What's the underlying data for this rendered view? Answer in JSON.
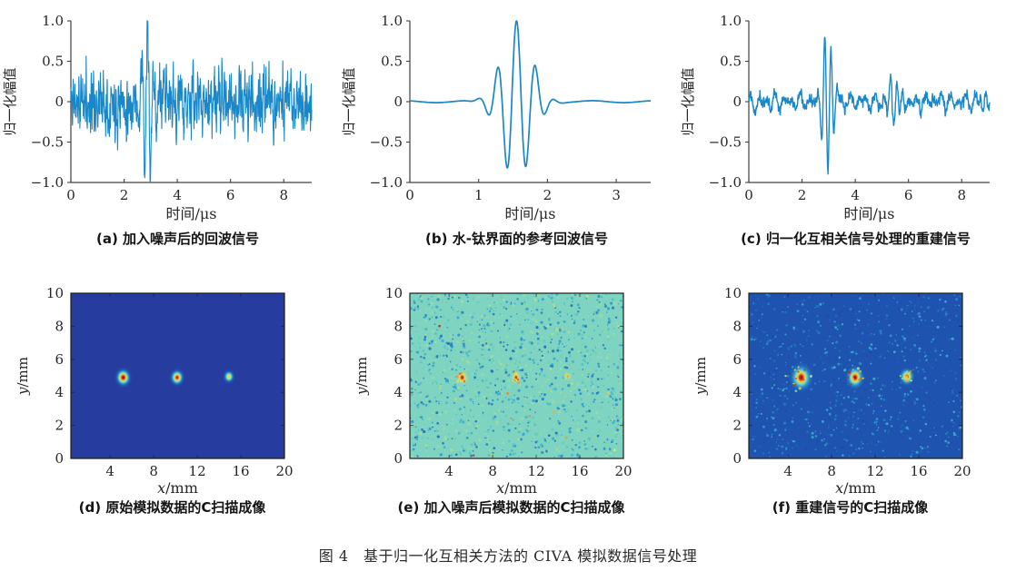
{
  "figure_caption": "图 4　基于归一化互相关方法的 CIVA 模拟数据信号处理",
  "colors": {
    "line": "#1987c8",
    "axis": "#404040",
    "tick_text": "#262626",
    "caption_text": "#141414",
    "heat_border": "#1b1b1b",
    "colormap": [
      [
        0.0,
        "#283a9e"
      ],
      [
        0.14,
        "#1d56b0"
      ],
      [
        0.3,
        "#2f9fd4"
      ],
      [
        0.42,
        "#62cbc4"
      ],
      [
        0.5,
        "#8fd9bd"
      ],
      [
        0.58,
        "#aede8d"
      ],
      [
        0.68,
        "#e8e84a"
      ],
      [
        0.78,
        "#f5a32a"
      ],
      [
        0.88,
        "#e04a1e"
      ],
      [
        0.95,
        "#c3241c"
      ],
      [
        1.0,
        "#7f100c"
      ]
    ]
  },
  "chart_data": [
    {
      "type": "line",
      "panel": "a",
      "caption": "(a) 加入噪声后的回波信号",
      "xlabel": "时间/μs",
      "ylabel": "归一化幅值",
      "xlim": [
        0,
        9.05
      ],
      "ylim": [
        -1,
        1
      ],
      "xticks": [
        0,
        2,
        4,
        6,
        8
      ],
      "xtick_labels": [
        "0",
        "2",
        "4",
        "6",
        "8"
      ],
      "yticks": [
        1,
        0.5,
        0,
        -0.5,
        -1
      ],
      "ytick_labels": [
        "1.0",
        "0.5",
        "0",
        "−0.5",
        "−1.0"
      ],
      "signal": {
        "points": 1150,
        "seed": 11,
        "noise_amp": 0.55,
        "line_width": 1.1,
        "ripples": [],
        "bursts": [
          {
            "center": 2.88,
            "sigma": 0.26,
            "freq": 4.6,
            "amp": 1.12,
            "phase": 1.5708
          }
        ]
      }
    },
    {
      "type": "line",
      "panel": "b",
      "caption": "(b) 水-钛界面的参考回波信号",
      "xlabel": "时间/μs",
      "ylabel": "归一化幅值",
      "xlim": [
        0,
        3.5
      ],
      "ylim": [
        -1,
        1
      ],
      "xticks": [
        0,
        1,
        2,
        3
      ],
      "xtick_labels": [
        "0",
        "1",
        "2",
        "3"
      ],
      "yticks": [
        1,
        0.5,
        0,
        -0.5,
        -1
      ],
      "ytick_labels": [
        "1.0",
        "0.5",
        "0",
        "−0.5",
        "−1.0"
      ],
      "signal": {
        "points": 460,
        "seed": 3,
        "noise_amp": 0,
        "line_width": 1.7,
        "ripples": [
          {
            "amp": 0.012,
            "freq": 1.1,
            "phase": 2.1
          }
        ],
        "bursts": [
          {
            "center": 1.55,
            "sigma": 0.3,
            "freq": 3.6,
            "amp": 1.0,
            "phase": 1.5708
          }
        ]
      }
    },
    {
      "type": "line",
      "panel": "c",
      "caption": "(c) 归一化互相关信号处理的重建信号",
      "xlabel": "时间/μs",
      "ylabel": "归一化幅值",
      "xlim": [
        0,
        9.05
      ],
      "ylim": [
        -1,
        1
      ],
      "xticks": [
        0,
        2,
        4,
        6,
        8
      ],
      "xtick_labels": [
        "0",
        "2",
        "4",
        "6",
        "8"
      ],
      "yticks": [
        1,
        0.5,
        0,
        -0.5,
        -1
      ],
      "ytick_labels": [
        "1.0",
        "0.5",
        "0",
        "−0.5",
        "−1.0"
      ],
      "signal": {
        "points": 1150,
        "seed": 27,
        "noise_amp": 0.1,
        "line_width": 1.4,
        "ripples": [
          {
            "amp": 0.055,
            "freq": 3.2,
            "phase": 0.4
          },
          {
            "amp": 0.05,
            "freq": 2.1,
            "phase": 1.3
          }
        ],
        "bursts": [
          {
            "center": 2.97,
            "sigma": 0.27,
            "freq": 4.2,
            "amp": 0.88,
            "phase": -1.5708
          },
          {
            "center": 5.5,
            "sigma": 0.3,
            "freq": 4.2,
            "amp": 0.32,
            "phase": 0
          },
          {
            "center": 8.85,
            "sigma": 0.17,
            "freq": 4.2,
            "amp": 0.18,
            "phase": 0
          }
        ]
      }
    },
    {
      "type": "heatmap",
      "panel": "d",
      "caption": "(d) 原始模拟数据的C扫描成像",
      "xlabel_var": "x",
      "xlabel_unit": "/mm",
      "ylabel_var": "y",
      "ylabel_unit": "/mm",
      "xlim": [
        0.4,
        20
      ],
      "ylim": [
        0,
        10
      ],
      "xticks": [
        4,
        8,
        12,
        16,
        20
      ],
      "xtick_labels": [
        "4",
        "8",
        "12",
        "16",
        "20"
      ],
      "yticks": [
        0,
        2,
        4,
        6,
        8,
        10
      ],
      "ytick_labels": [
        "0",
        "2",
        "4",
        "6",
        "8",
        "10"
      ],
      "floor": 0.01,
      "falloff": 0.54,
      "seed": 5,
      "speckles": {
        "count": 0,
        "bias": 0.5,
        "spread": 0,
        "size": 0
      },
      "spot_noise": 0,
      "spots": [
        {
          "x": 5.2,
          "y": 4.9,
          "rx": 0.8,
          "ry": 0.62,
          "peak": 1.0
        },
        {
          "x": 10.15,
          "y": 4.9,
          "rx": 0.72,
          "ry": 0.56,
          "peak": 0.96
        },
        {
          "x": 14.9,
          "y": 4.95,
          "rx": 0.58,
          "ry": 0.45,
          "peak": 0.74
        }
      ]
    },
    {
      "type": "heatmap",
      "panel": "e",
      "caption": "(e) 加入噪声后模拟数据的C扫描成像",
      "xlabel_var": "x",
      "xlabel_unit": "/mm",
      "ylabel_var": "y",
      "ylabel_unit": "/mm",
      "xlim": [
        0.4,
        20
      ],
      "ylim": [
        0,
        10
      ],
      "xticks": [
        4,
        8,
        12,
        16,
        20
      ],
      "xtick_labels": [
        "4",
        "8",
        "12",
        "16",
        "20"
      ],
      "yticks": [
        0,
        2,
        4,
        6,
        8,
        10
      ],
      "ytick_labels": [
        "0",
        "2",
        "4",
        "6",
        "8",
        "10"
      ],
      "floor": 0.47,
      "falloff": 0.42,
      "seed": 13,
      "speckles": {
        "count": 1500,
        "bias": 0.72,
        "spread": 0.4,
        "size": 1.5,
        "hot_prob": 0.02,
        "hot_amp": 0.28
      },
      "spot_noise": 10,
      "spots": [
        {
          "x": 5.2,
          "y": 4.9,
          "rx": 0.62,
          "ry": 0.5,
          "peak": 0.97
        },
        {
          "x": 10.15,
          "y": 4.9,
          "rx": 0.5,
          "ry": 0.42,
          "peak": 0.95
        },
        {
          "x": 14.9,
          "y": 4.95,
          "rx": 0.42,
          "ry": 0.33,
          "peak": 0.85
        }
      ]
    },
    {
      "type": "heatmap",
      "panel": "f",
      "caption": "(f) 重建信号的C扫描成像",
      "xlabel_var": "x",
      "xlabel_unit": "/mm",
      "ylabel_var": "y",
      "ylabel_unit": "/mm",
      "xlim": [
        0.4,
        20
      ],
      "ylim": [
        0,
        10
      ],
      "xticks": [
        4,
        8,
        12,
        16,
        20
      ],
      "xtick_labels": [
        "4",
        "8",
        "12",
        "16",
        "20"
      ],
      "yticks": [
        0,
        2,
        4,
        6,
        8,
        10
      ],
      "ytick_labels": [
        "0",
        "2",
        "4",
        "6",
        "8",
        "10"
      ],
      "floor": 0.13,
      "falloff": 0.5,
      "seed": 21,
      "speckles": {
        "count": 950,
        "bias": 0.22,
        "spread": 0.3,
        "size": 1.3,
        "hot_prob": 0.008,
        "hot_amp": 0.3
      },
      "spot_noise": 14,
      "spots": [
        {
          "x": 5.2,
          "y": 4.9,
          "rx": 1.05,
          "ry": 0.85,
          "peak": 1.0
        },
        {
          "x": 10.15,
          "y": 4.9,
          "rx": 0.85,
          "ry": 0.7,
          "peak": 1.0
        },
        {
          "x": 14.9,
          "y": 4.95,
          "rx": 0.7,
          "ry": 0.55,
          "peak": 0.96
        }
      ]
    }
  ]
}
